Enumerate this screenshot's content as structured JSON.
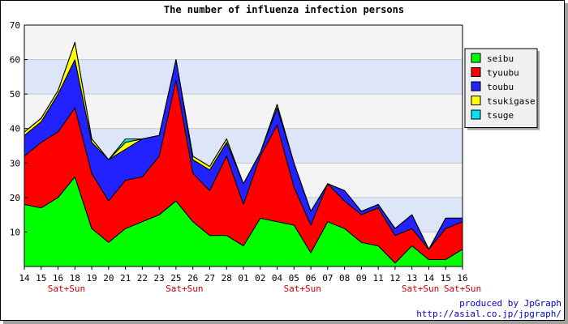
{
  "chart_data": {
    "type": "area",
    "stacked": true,
    "title": "The number of influenza infection persons",
    "xlabel": "",
    "ylabel": "",
    "ylim": [
      0,
      70
    ],
    "yticks": [
      10,
      20,
      30,
      40,
      50,
      60,
      70
    ],
    "grid": true,
    "legend_position": "right",
    "x_labels": [
      "14",
      "15",
      "16",
      "18",
      "19",
      "20",
      "21",
      "22",
      "23",
      "25",
      "26",
      "27",
      "28",
      "01",
      "02",
      "04",
      "05",
      "06",
      "07",
      "08",
      "09",
      "11",
      "12",
      "13",
      "14",
      "15",
      "16"
    ],
    "weekend_labels": [
      {
        "after_index": 2,
        "text": "Sat+Sun"
      },
      {
        "after_index": 9,
        "text": "Sat+Sun"
      },
      {
        "after_index": 16,
        "text": "Sat+Sun"
      },
      {
        "after_index": 23,
        "text": "Sat+Sun"
      },
      {
        "after_index": 26,
        "text": "Sat+Sun"
      }
    ],
    "series": [
      {
        "name": "seibu",
        "color": "#00ff00",
        "values": [
          18,
          17,
          20,
          26,
          11,
          7,
          11,
          13,
          15,
          19,
          13,
          9,
          9,
          6,
          14,
          13,
          12,
          4,
          13,
          11,
          7,
          6,
          1,
          6,
          2,
          2,
          5
        ]
      },
      {
        "name": "tyuubu",
        "color": "#ff0000",
        "values": [
          14,
          19,
          19,
          20,
          16,
          12,
          14,
          13,
          17,
          35,
          14,
          13,
          23,
          12,
          18,
          28,
          11,
          8,
          11,
          8,
          8,
          11,
          8,
          5,
          3,
          9,
          8
        ]
      },
      {
        "name": "toubu",
        "color": "#2222ff",
        "values": [
          6,
          6,
          11,
          14,
          9,
          12,
          9,
          11,
          6,
          6,
          4,
          6,
          4,
          6,
          1,
          5,
          7,
          4,
          0,
          3,
          1,
          1,
          2,
          4,
          0,
          3,
          1
        ]
      },
      {
        "name": "tsukigase",
        "color": "#ffff00",
        "values": [
          1,
          1,
          1,
          5,
          1,
          0,
          2,
          0,
          0,
          0,
          1,
          1,
          1,
          0,
          0,
          1,
          0,
          0,
          0,
          0,
          0,
          0,
          0,
          0,
          0,
          0,
          0
        ]
      },
      {
        "name": "tsuge",
        "color": "#00e5ee",
        "values": [
          0,
          0,
          0,
          0,
          0,
          0,
          1,
          0,
          0,
          0,
          0,
          0,
          0,
          0,
          0,
          0,
          0,
          0,
          0,
          0,
          0,
          0,
          0,
          0,
          0,
          0,
          0
        ]
      }
    ],
    "colors": {
      "band_light": "#f4f4f4",
      "band_blue": "#dde5f8",
      "weekend_label": "#cc0000"
    }
  },
  "credit": {
    "line1": "produced by JpGraph",
    "line2": "http://asial.co.jp/jpgraph/"
  }
}
